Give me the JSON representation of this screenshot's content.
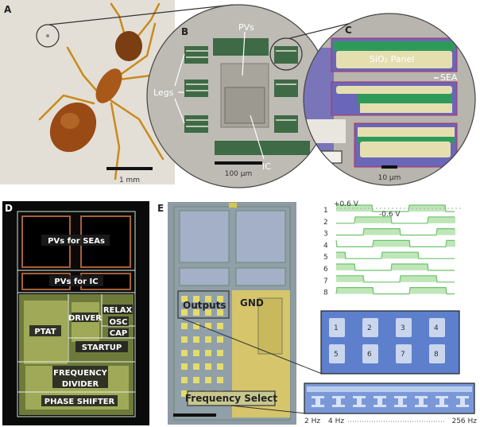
{
  "panels": {
    "a": {
      "label": "A",
      "scale": "1 mm"
    },
    "b": {
      "label": "B",
      "pvs": "PVs",
      "legs": "Legs",
      "ic": "IC",
      "scale": "100 µm"
    },
    "c": {
      "label": "C",
      "panel": "SiO₂ Panel",
      "sea": "SEA",
      "scale": "10 µm"
    },
    "d": {
      "label": "D",
      "blocks": [
        "PVs for SEAs",
        "PVs for IC",
        "PTAT",
        "DRIVER",
        "RELAX",
        "OSC",
        "CAP",
        "STARTUP",
        "FREQUENCY",
        "DIVIDER",
        "PHASE SHIFTER"
      ]
    },
    "e": {
      "label": "E",
      "outputs": "Outputs",
      "gnd": "GND",
      "freq_select": "Frequency Select",
      "pos_v": "+0.6 V",
      "neg_v": "-0.6 V",
      "rows": [
        "1",
        "2",
        "3",
        "4",
        "5",
        "6",
        "7",
        "8"
      ],
      "pads": [
        "1",
        "2",
        "3",
        "4",
        "5",
        "6",
        "7",
        "8"
      ],
      "freq_start": "2 Hz",
      "freq_second": "4 Hz",
      "freq_end": "256 Hz",
      "colors": {
        "wave": "#6cc46c",
        "wave_fill": "#bfe6b8",
        "chip_blue": "#5d7fcc"
      }
    }
  }
}
